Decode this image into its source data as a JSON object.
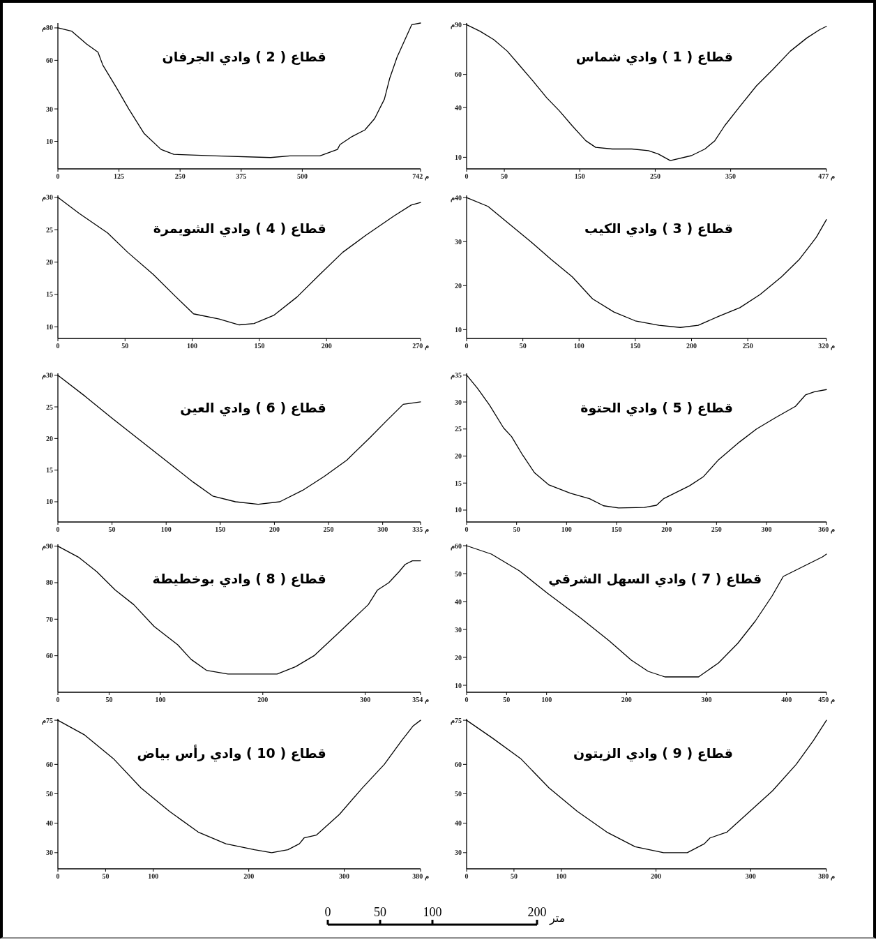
{
  "chart_data": [
    {
      "type": "line",
      "title": "قطاع ( 1 ) وادي شماس",
      "color": "#000000",
      "x": [
        0,
        18,
        36,
        54,
        71,
        88,
        106,
        123,
        140,
        158,
        171,
        193,
        219,
        241,
        254,
        270,
        298,
        316,
        329,
        342,
        361,
        384,
        406,
        429,
        451,
        468,
        477
      ],
      "values": [
        90,
        86,
        81,
        74,
        65,
        56,
        46,
        38,
        29,
        20,
        16,
        15,
        15,
        14,
        12,
        8,
        11,
        15,
        20,
        29,
        40,
        53,
        63,
        74,
        82,
        87,
        89
      ],
      "xlim": [
        0,
        477
      ],
      "xticks": [
        0,
        50,
        150,
        250,
        350,
        {
          "value": 477,
          "label": "477 م"
        }
      ],
      "ylim": [
        3,
        91
      ],
      "yticks": [
        {
          "value": 90,
          "label": "90م"
        },
        60,
        40,
        10
      ]
    },
    {
      "type": "line",
      "title": "قطاع ( 2 ) وادي الجرفان",
      "color": "#000000",
      "x": [
        0,
        28,
        59,
        82,
        92,
        120,
        145,
        176,
        211,
        237,
        323,
        435,
        475,
        536,
        572,
        577,
        602,
        628,
        648,
        668,
        679,
        694,
        709,
        724,
        742
      ],
      "values": [
        80,
        78,
        70,
        65,
        57,
        43,
        30,
        15,
        5,
        2,
        1,
        0,
        1,
        1,
        5,
        8,
        13,
        17,
        24,
        36,
        49,
        62,
        72,
        82,
        83
      ],
      "xlim": [
        0,
        742
      ],
      "xticks": [
        0,
        125,
        250,
        375,
        500,
        {
          "value": 742,
          "label": "742 م"
        }
      ],
      "ylim": [
        -7,
        83
      ],
      "yticks": [
        {
          "value": 80,
          "label": "80م"
        },
        60,
        30,
        10
      ]
    },
    {
      "type": "line",
      "title": "قطاع ( 3 ) وادي الكيب",
      "color": "#000000",
      "x": [
        0,
        19,
        38,
        57,
        75,
        94,
        112,
        131,
        150,
        171,
        190,
        206,
        224,
        243,
        261,
        280,
        296,
        305,
        311,
        320
      ],
      "values": [
        40,
        38,
        34,
        30,
        26,
        22,
        17,
        14,
        12,
        11,
        10.5,
        11,
        13,
        15,
        18,
        22,
        26,
        29,
        31,
        35
      ],
      "xlim": [
        0,
        320
      ],
      "xticks": [
        0,
        50,
        100,
        150,
        200,
        250,
        {
          "value": 320,
          "label": "320 م"
        }
      ],
      "ylim": [
        8,
        40.5
      ],
      "yticks": [
        {
          "value": 40,
          "label": "40م"
        },
        30,
        20,
        10
      ]
    },
    {
      "type": "line",
      "title": "قطاع ( 4 ) وادي الشويمرة",
      "color": "#000000",
      "x": [
        0,
        16,
        37,
        52,
        71,
        88,
        101,
        120,
        135,
        146,
        161,
        178,
        195,
        212,
        229,
        250,
        263,
        270
      ],
      "values": [
        30,
        27.5,
        24.5,
        21.5,
        18.1,
        14.6,
        12,
        11.2,
        10.3,
        10.5,
        11.8,
        14.6,
        18.1,
        21.5,
        24.1,
        27.1,
        28.8,
        29.2
      ],
      "xlim": [
        0,
        270
      ],
      "xticks": [
        0,
        50,
        100,
        150,
        200,
        {
          "value": 270,
          "label": "270 م"
        }
      ],
      "ylim": [
        8.2,
        30.3
      ],
      "yticks": [
        {
          "value": 30,
          "label": "30م"
        },
        25,
        20,
        15,
        10
      ]
    },
    {
      "type": "line",
      "title": "قطاع ( 5 ) وادي الحتوة",
      "color": "#000000",
      "x": [
        0,
        11,
        23,
        37,
        45,
        56,
        68,
        82,
        104,
        123,
        137,
        152,
        178,
        190,
        197,
        223,
        237,
        252,
        273,
        290,
        309,
        329,
        339,
        348,
        360
      ],
      "values": [
        35,
        32.5,
        29.4,
        25.2,
        23.6,
        20.2,
        16.9,
        14.7,
        13.1,
        12.1,
        10.8,
        10.4,
        10.5,
        10.9,
        12.1,
        14.5,
        16.2,
        19.3,
        22.6,
        25,
        27.1,
        29.2,
        31.3,
        31.9,
        32.3
      ],
      "xlim": [
        0,
        360
      ],
      "xticks": [
        0,
        50,
        100,
        150,
        200,
        250,
        300,
        {
          "value": 360,
          "label": "360 م"
        }
      ],
      "ylim": [
        7.8,
        35.3
      ],
      "yticks": [
        {
          "value": 35,
          "label": "35م"
        },
        30,
        25,
        20,
        15,
        10
      ]
    },
    {
      "type": "line",
      "title": "قطاع ( 6 ) وادي العين",
      "color": "#000000",
      "x": [
        0,
        25,
        50,
        76,
        102,
        125,
        143,
        164,
        185,
        205,
        226,
        246,
        267,
        288,
        303,
        319,
        335
      ],
      "values": [
        30,
        26.7,
        23.2,
        19.7,
        16.2,
        13.1,
        10.9,
        10,
        9.6,
        10,
        11.8,
        14,
        16.6,
        20.1,
        22.7,
        25.4,
        25.8
      ],
      "xlim": [
        0,
        335
      ],
      "xticks": [
        0,
        50,
        100,
        150,
        200,
        250,
        300,
        {
          "value": 335,
          "label": "335 م"
        }
      ],
      "ylim": [
        6.8,
        30.3
      ],
      "yticks": [
        {
          "value": 30,
          "label": "30م"
        },
        25,
        20,
        15,
        10
      ]
    },
    {
      "type": "line",
      "title": "قطاع ( 7 ) وادي السهل الشرقي",
      "color": "#000000",
      "x": [
        0,
        31,
        66,
        101,
        143,
        178,
        206,
        227,
        248,
        276,
        290,
        315,
        339,
        361,
        382,
        396,
        424,
        445,
        450
      ],
      "values": [
        60,
        57,
        51,
        43,
        34,
        26,
        19,
        15,
        13,
        13,
        13,
        18,
        25,
        33,
        42,
        49,
        53,
        56,
        57
      ],
      "xlim": [
        0,
        450
      ],
      "xticks": [
        0,
        50,
        100,
        200,
        300,
        400,
        {
          "value": 450,
          "label": "450 م"
        }
      ],
      "ylim": [
        7.5,
        60.5
      ],
      "yticks": [
        {
          "value": 60,
          "label": "60م"
        },
        50,
        40,
        30,
        20,
        10
      ]
    },
    {
      "type": "line",
      "title": "قطاع ( 8 ) وادي بوخطيطة",
      "color": "#000000",
      "x": [
        0,
        20,
        38,
        56,
        74,
        94,
        117,
        130,
        145,
        166,
        214,
        232,
        250,
        273,
        288,
        303,
        312,
        323,
        333,
        339,
        346,
        354
      ],
      "values": [
        90,
        87,
        83,
        78,
        74,
        68,
        63,
        59,
        56,
        55,
        55,
        57,
        60,
        66,
        70,
        74,
        78,
        80,
        83,
        85,
        86,
        86
      ],
      "xlim": [
        0,
        354
      ],
      "xticks": [
        0,
        50,
        100,
        200,
        300,
        {
          "value": 354,
          "label": "354 م"
        }
      ],
      "ylim": [
        50,
        90.5
      ],
      "yticks": [
        {
          "value": 90,
          "label": "90م"
        },
        80,
        70,
        60
      ]
    },
    {
      "type": "line",
      "title": "قطاع ( 9 ) وادي الزيتون",
      "color": "#000000",
      "x": [
        0,
        27,
        57,
        87,
        117,
        148,
        178,
        208,
        233,
        251,
        257,
        275,
        299,
        323,
        348,
        366,
        378,
        380
      ],
      "values": [
        75,
        69,
        62,
        52,
        44,
        37,
        32,
        30,
        30,
        33,
        35,
        37,
        44,
        51,
        60,
        68,
        74,
        75
      ],
      "xlim": [
        0,
        380
      ],
      "xticks": [
        0,
        50,
        100,
        200,
        300,
        {
          "value": 380,
          "label": "380 م"
        }
      ],
      "ylim": [
        24.5,
        75.5
      ],
      "yticks": [
        {
          "value": 75,
          "label": "75م"
        },
        60,
        50,
        40,
        30
      ]
    },
    {
      "type": "line",
      "title": "قطاع ( 10 ) وادي رأس بياض",
      "color": "#000000",
      "x": [
        0,
        28,
        58,
        87,
        117,
        147,
        176,
        206,
        224,
        241,
        253,
        258,
        271,
        295,
        319,
        342,
        360,
        372,
        380
      ],
      "values": [
        75,
        70,
        62,
        52,
        44,
        37,
        33,
        31,
        30,
        31,
        33,
        35,
        36,
        43,
        52,
        60,
        68,
        73,
        75
      ],
      "xlim": [
        0,
        380
      ],
      "xticks": [
        0,
        50,
        100,
        200,
        300,
        {
          "value": 380,
          "label": "380 م"
        }
      ],
      "ylim": [
        24.5,
        75.5
      ],
      "yticks": [
        {
          "value": 75,
          "label": "75م"
        },
        60,
        50,
        40,
        30
      ]
    },
    {
      "type": "other",
      "annotations": [
        "0",
        "50",
        "100",
        "200",
        "متر"
      ]
    }
  ]
}
